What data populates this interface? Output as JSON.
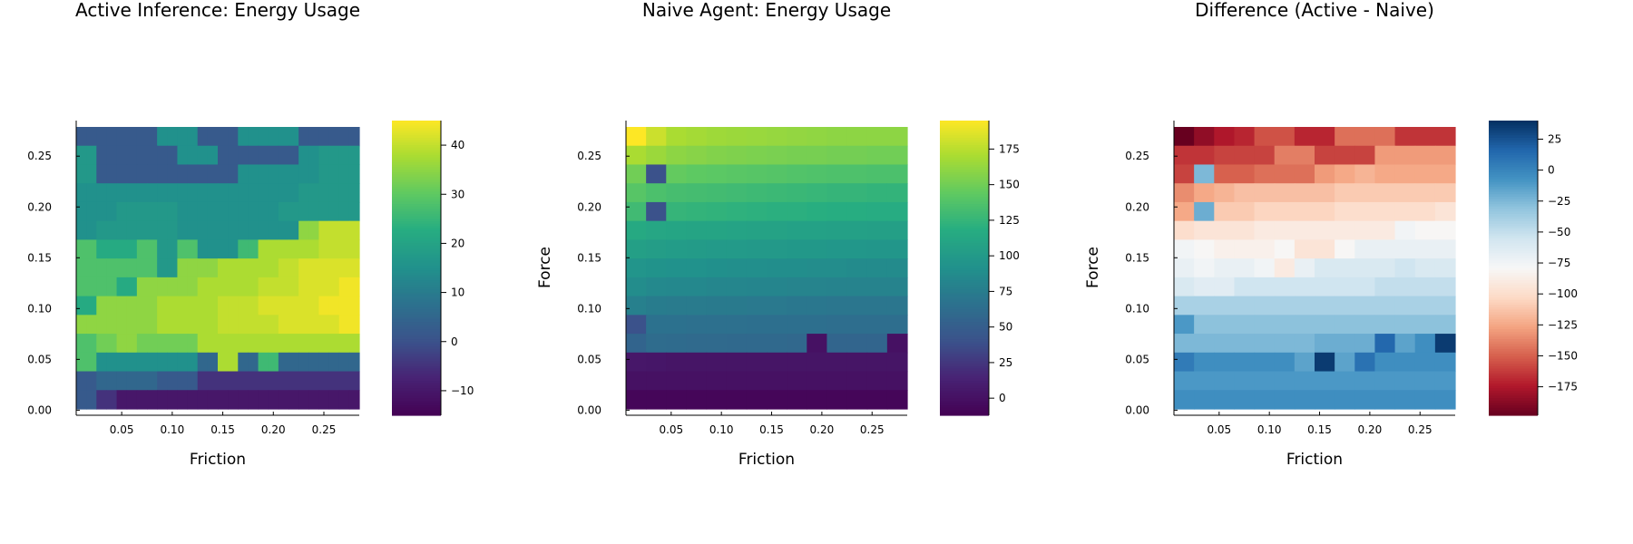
{
  "chart_data": [
    {
      "type": "heatmap",
      "title": "Active Inference: Energy Usage",
      "xlabel": "Friction",
      "ylabel": "Force",
      "x_ticks": [
        "0.05",
        "0.10",
        "0.15",
        "0.20",
        "0.25"
      ],
      "y_ticks": [
        "0.00",
        "0.05",
        "0.10",
        "0.15",
        "0.20",
        "0.25"
      ],
      "x_range": [
        0.005,
        0.285
      ],
      "y_range": [
        -0.005,
        0.285
      ],
      "colormap": "viridis",
      "color_range": [
        -15,
        45
      ],
      "colorbar_ticks": [
        "-10",
        "0",
        "10",
        "20",
        "30",
        "40"
      ],
      "grid": false,
      "rows_top_to_bottom": [
        [
          2,
          2,
          2,
          2,
          2,
          2,
          2,
          2,
          15,
          15,
          15,
          15,
          2,
          2,
          2,
          2,
          15,
          15,
          15,
          15,
          15,
          15,
          2,
          2,
          2,
          2,
          2,
          2
        ],
        [
          17,
          17,
          2,
          2,
          2,
          2,
          2,
          2,
          2,
          2,
          15,
          15,
          15,
          15,
          2,
          2,
          2,
          2,
          2,
          2,
          2,
          2,
          15,
          15,
          17,
          17,
          17,
          17
        ],
        [
          17,
          17,
          2,
          2,
          2,
          2,
          2,
          2,
          2,
          2,
          2,
          2,
          2,
          2,
          2,
          2,
          15,
          15,
          15,
          15,
          15,
          15,
          15,
          15,
          17,
          17,
          17,
          17
        ],
        [
          15,
          15,
          15,
          15,
          15,
          15,
          15,
          15,
          15,
          15,
          15,
          15,
          15,
          15,
          15,
          15,
          15,
          15,
          15,
          15,
          15,
          15,
          17,
          17,
          17,
          17,
          17,
          17
        ],
        [
          15,
          15,
          15,
          15,
          17,
          17,
          17,
          17,
          17,
          17,
          15,
          15,
          15,
          15,
          15,
          15,
          15,
          15,
          15,
          15,
          17,
          17,
          17,
          17,
          17,
          17,
          17,
          17
        ],
        [
          15,
          15,
          17,
          17,
          17,
          17,
          17,
          17,
          17,
          17,
          15,
          15,
          15,
          15,
          15,
          15,
          15,
          15,
          15,
          15,
          15,
          15,
          35,
          35,
          40,
          40,
          40,
          40
        ],
        [
          28,
          28,
          22,
          22,
          22,
          22,
          28,
          28,
          17,
          17,
          28,
          28,
          15,
          15,
          15,
          15,
          26,
          26,
          38,
          38,
          38,
          38,
          38,
          38,
          40,
          40,
          40,
          40
        ],
        [
          28,
          28,
          28,
          28,
          28,
          28,
          28,
          28,
          17,
          17,
          35,
          35,
          35,
          35,
          38,
          38,
          38,
          38,
          38,
          38,
          40,
          40,
          42,
          42,
          42,
          42,
          42,
          42
        ],
        [
          28,
          28,
          28,
          28,
          22,
          22,
          35,
          35,
          35,
          35,
          35,
          35,
          38,
          38,
          38,
          38,
          38,
          38,
          40,
          40,
          40,
          40,
          42,
          42,
          42,
          42,
          44,
          44
        ],
        [
          22,
          22,
          35,
          35,
          35,
          35,
          35,
          35,
          38,
          38,
          38,
          38,
          38,
          38,
          40,
          40,
          40,
          40,
          42,
          42,
          42,
          42,
          42,
          42,
          44,
          44,
          44,
          44
        ],
        [
          35,
          35,
          35,
          35,
          35,
          35,
          35,
          35,
          38,
          38,
          38,
          38,
          38,
          38,
          40,
          40,
          40,
          40,
          40,
          40,
          42,
          42,
          42,
          42,
          42,
          42,
          44,
          44
        ],
        [
          28,
          28,
          32,
          32,
          35,
          35,
          32,
          32,
          32,
          32,
          32,
          32,
          38,
          38,
          38,
          38,
          38,
          38,
          38,
          38,
          38,
          38,
          38,
          38,
          38,
          38,
          38,
          38
        ],
        [
          28,
          28,
          15,
          15,
          15,
          15,
          15,
          15,
          15,
          15,
          15,
          15,
          5,
          5,
          38,
          38,
          5,
          5,
          26,
          26,
          5,
          5,
          5,
          5,
          5,
          5,
          5,
          5
        ],
        [
          2,
          2,
          5,
          5,
          5,
          5,
          5,
          5,
          2,
          2,
          2,
          2,
          -5,
          -5,
          -5,
          -5,
          -5,
          -5,
          -5,
          -5,
          -5,
          -5,
          -5,
          -5,
          -5,
          -5,
          -5,
          -5
        ],
        [
          2,
          2,
          -5,
          -5,
          -10,
          -10,
          -10,
          -10,
          -10,
          -10,
          -10,
          -10,
          -10,
          -10,
          -10,
          -10,
          -10,
          -10,
          -10,
          -10,
          -10,
          -10,
          -10,
          -10,
          -10,
          -10,
          -10,
          -10
        ]
      ]
    },
    {
      "type": "heatmap",
      "title": "Naive Agent: Energy Usage",
      "xlabel": "Friction",
      "ylabel": "Force",
      "x_ticks": [
        "0.05",
        "0.10",
        "0.15",
        "0.20",
        "0.25"
      ],
      "y_ticks": [
        "0.00",
        "0.05",
        "0.10",
        "0.15",
        "0.20",
        "0.25"
      ],
      "x_range": [
        0.005,
        0.285
      ],
      "y_range": [
        -0.005,
        0.285
      ],
      "colormap": "viridis",
      "color_range": [
        -12,
        195
      ],
      "colorbar_ticks": [
        "0",
        "25",
        "50",
        "75",
        "100",
        "125",
        "150",
        "175"
      ],
      "grid": false,
      "rows_top_to_bottom": [
        [
          195,
          180,
          170,
          168,
          166,
          165,
          164,
          163,
          162,
          161,
          160,
          160,
          160,
          160
        ],
        [
          170,
          165,
          160,
          158,
          156,
          155,
          154,
          153,
          152,
          152,
          151,
          151,
          150,
          150
        ],
        [
          150,
          40,
          145,
          143,
          142,
          141,
          140,
          139,
          138,
          137,
          136,
          136,
          135,
          135
        ],
        [
          140,
          135,
          133,
          132,
          131,
          130,
          129,
          128,
          127,
          126,
          125,
          125,
          124,
          124
        ],
        [
          130,
          40,
          125,
          124,
          123,
          122,
          121,
          120,
          120,
          119,
          118,
          118,
          117,
          117
        ],
        [
          115,
          112,
          111,
          110,
          110,
          109,
          108,
          108,
          107,
          107,
          106,
          106,
          105,
          105
        ],
        [
          105,
          103,
          102,
          101,
          100,
          100,
          99,
          99,
          98,
          98,
          97,
          97,
          96,
          96
        ],
        [
          95,
          93,
          92,
          92,
          91,
          90,
          90,
          89,
          89,
          88,
          88,
          87,
          87,
          87
        ],
        [
          88,
          85,
          84,
          84,
          83,
          83,
          82,
          82,
          81,
          81,
          80,
          80,
          80,
          80
        ],
        [
          78,
          75,
          74,
          74,
          73,
          73,
          72,
          72,
          71,
          71,
          70,
          70,
          70,
          70
        ],
        [
          40,
          66,
          66,
          65,
          65,
          65,
          64,
          64,
          64,
          64,
          63,
          63,
          63,
          63
        ],
        [
          55,
          62,
          61,
          60,
          60,
          59,
          59,
          59,
          58,
          0,
          56,
          56,
          56,
          0
        ],
        [
          5,
          4,
          3,
          3,
          3,
          3,
          3,
          3,
          3,
          3,
          3,
          3,
          3,
          3
        ],
        [
          0,
          0,
          0,
          0,
          0,
          0,
          0,
          0,
          0,
          0,
          0,
          0,
          0,
          0
        ],
        [
          -8,
          -8,
          -8,
          -8,
          -8,
          -8,
          -8,
          -8,
          -8,
          -8,
          -8,
          -8,
          -8,
          -8
        ]
      ]
    },
    {
      "type": "heatmap",
      "title": "Difference (Active - Naive)",
      "xlabel": "Friction",
      "ylabel": "Force",
      "x_ticks": [
        "0.05",
        "0.10",
        "0.15",
        "0.20",
        "0.25"
      ],
      "y_ticks": [
        "0.00",
        "0.05",
        "0.10",
        "0.15",
        "0.20",
        "0.25"
      ],
      "x_range": [
        0.005,
        0.285
      ],
      "y_range": [
        -0.005,
        0.285
      ],
      "colormap": "RdBu",
      "color_range": [
        -198,
        40
      ],
      "colorbar_ticks": [
        "-175",
        "-150",
        "-125",
        "-100",
        "-75",
        "-50",
        "-25",
        "0",
        "25"
      ],
      "grid": false,
      "rows_top_to_bottom": [
        [
          -198,
          -185,
          -175,
          -170,
          -155,
          -155,
          -170,
          -170,
          -145,
          -145,
          -145,
          -165,
          -165,
          -165
        ],
        [
          -165,
          -165,
          -160,
          -160,
          -160,
          -140,
          -140,
          -160,
          -160,
          -160,
          -130,
          -130,
          -130,
          -130
        ],
        [
          -160,
          -25,
          -150,
          -150,
          -145,
          -145,
          -145,
          -130,
          -125,
          -120,
          -125,
          -125,
          -125,
          -125
        ],
        [
          -135,
          -125,
          -120,
          -115,
          -115,
          -115,
          -115,
          -115,
          -110,
          -110,
          -110,
          -110,
          -110,
          -110
        ],
        [
          -125,
          -20,
          -110,
          -110,
          -105,
          -105,
          -105,
          -105,
          -100,
          -100,
          -100,
          -100,
          -100,
          -95
        ],
        [
          -100,
          -95,
          -95,
          -95,
          -90,
          -90,
          -90,
          -90,
          -90,
          -90,
          -90,
          -75,
          -80,
          -80
        ],
        [
          -75,
          -80,
          -85,
          -85,
          -85,
          -80,
          -95,
          -95,
          -80,
          -70,
          -70,
          -70,
          -70,
          -70
        ],
        [
          -70,
          -75,
          -70,
          -70,
          -75,
          -90,
          -70,
          -60,
          -60,
          -60,
          -60,
          -55,
          -60,
          -60
        ],
        [
          -60,
          -65,
          -65,
          -55,
          -55,
          -55,
          -55,
          -55,
          -55,
          -55,
          -50,
          -50,
          -50,
          -50
        ],
        [
          -40,
          -40,
          -40,
          -40,
          -40,
          -40,
          -40,
          -40,
          -40,
          -40,
          -40,
          -40,
          -40,
          -40
        ],
        [
          -10,
          -30,
          -30,
          -30,
          -30,
          -30,
          -30,
          -30,
          -30,
          -30,
          -30,
          -30,
          -30,
          -30
        ],
        [
          -25,
          -25,
          -25,
          -25,
          -25,
          -25,
          -25,
          -20,
          -20,
          -20,
          15,
          -15,
          -5,
          35
        ],
        [
          5,
          -5,
          -5,
          -5,
          -5,
          -5,
          -15,
          35,
          -15,
          10,
          -5,
          -5,
          -5,
          -5
        ],
        [
          -10,
          -10,
          -10,
          -10,
          -10,
          -10,
          -10,
          -10,
          -10,
          -10,
          -10,
          -10,
          -10,
          -10
        ],
        [
          -5,
          -5,
          -5,
          -5,
          -5,
          -5,
          -5,
          -5,
          -5,
          -5,
          -5,
          -5,
          -5,
          -5
        ]
      ]
    }
  ]
}
